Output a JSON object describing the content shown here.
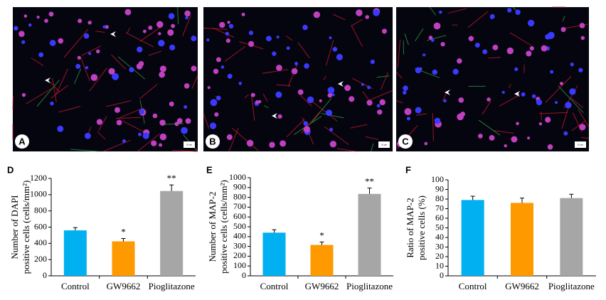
{
  "panels": [
    {
      "label": "A",
      "scale_bar": "20 μm"
    },
    {
      "label": "B",
      "scale_bar": "20 μm"
    },
    {
      "label": "C",
      "scale_bar": "20 μm"
    }
  ],
  "chart_data": [
    {
      "type": "bar",
      "panel": "D",
      "ylabel": [
        "Number of DAPI",
        "positive cells (cells/mm²)"
      ],
      "categories": [
        "Control",
        "GW9662",
        "Pioglitazone"
      ],
      "values": [
        560,
        425,
        1045
      ],
      "errors": [
        35,
        35,
        75
      ],
      "annotations": [
        null,
        "*",
        "**"
      ],
      "colors": [
        "#00b0f0",
        "#ff9900",
        "#a6a6a6"
      ],
      "ylim": [
        0,
        1200
      ],
      "yticks": [
        0,
        200,
        400,
        600,
        800,
        1000,
        1200
      ]
    },
    {
      "type": "bar",
      "panel": "E",
      "ylabel": [
        "Number of MAP-2",
        "positive cells (cells/mm²)"
      ],
      "categories": [
        "Control",
        "GW9662",
        "Pioglitazone"
      ],
      "values": [
        440,
        315,
        835
      ],
      "errors": [
        30,
        30,
        60
      ],
      "annotations": [
        null,
        "*",
        "**"
      ],
      "colors": [
        "#00b0f0",
        "#ff9900",
        "#a6a6a6"
      ],
      "ylim": [
        0,
        1000
      ],
      "yticks": [
        0,
        100,
        200,
        300,
        400,
        500,
        600,
        700,
        800,
        900,
        1000
      ]
    },
    {
      "type": "bar",
      "panel": "F",
      "ylabel": [
        "Ratio of MAP-2",
        "positive cells (%)"
      ],
      "categories": [
        "Control",
        "GW9662",
        "Pioglitazone"
      ],
      "values": [
        79,
        76,
        81
      ],
      "errors": [
        4,
        5,
        4
      ],
      "annotations": [
        null,
        null,
        null
      ],
      "colors": [
        "#00b0f0",
        "#ff9900",
        "#a6a6a6"
      ],
      "ylim": [
        0,
        100
      ],
      "yticks": [
        0,
        10,
        20,
        30,
        40,
        50,
        60,
        70,
        80,
        90,
        100
      ]
    }
  ]
}
